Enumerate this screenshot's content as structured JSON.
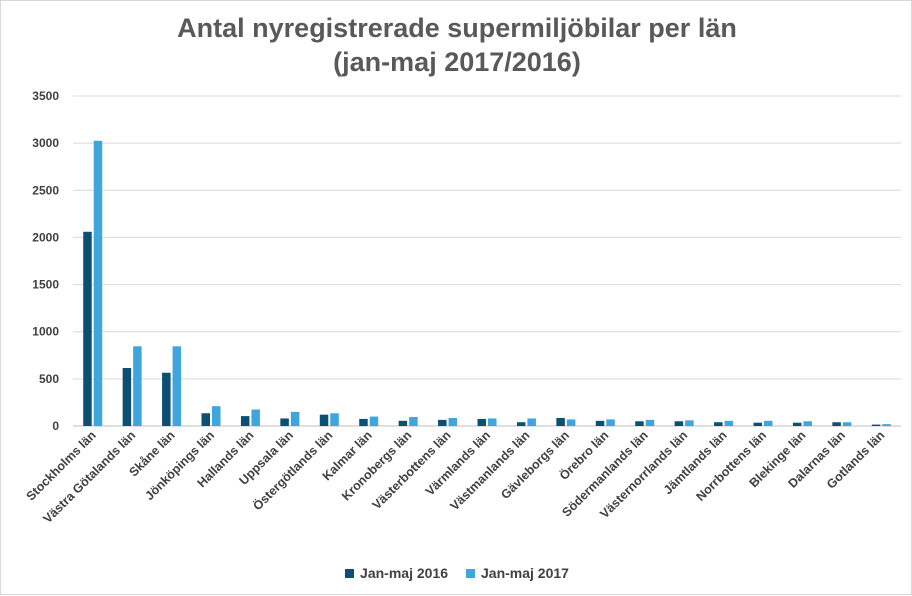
{
  "chart_data": {
    "type": "bar",
    "title_line1": "Antal nyregistrerade supermiljöbilar per län",
    "title_line2": "(jan-maj 2017/2016)",
    "xlabel": "",
    "ylabel": "",
    "ylim": [
      0,
      3500
    ],
    "yticks": [
      "0",
      "500",
      "1000",
      "1500",
      "2000",
      "2500",
      "3000",
      "3500"
    ],
    "grid": true,
    "legend_position": "bottom",
    "categories": [
      "Stockholms län",
      "Västra Götalands län",
      "Skåne län",
      "Jönköpings län",
      "Hallands län",
      "Uppsala län",
      "Östergötlands län",
      "Kalmar län",
      "Kronobergs län",
      "Västerbottens län",
      "Värmlands län",
      "Västmanlands län",
      "Gävleborgs län",
      "Örebro län",
      "Södermanlands län",
      "Västernorrlands län",
      "Jämtlands län",
      "Norrbottens län",
      "Blekinge län",
      "Dalarnas län",
      "Gotlands län"
    ],
    "series": [
      {
        "name": "Jan-maj 2016",
        "color": "#0b4f73",
        "values": [
          2060,
          615,
          565,
          135,
          105,
          80,
          120,
          75,
          55,
          65,
          75,
          40,
          85,
          55,
          50,
          50,
          40,
          35,
          35,
          40,
          15
        ]
      },
      {
        "name": "Jan-maj 2017",
        "color": "#3ea6dd",
        "values": [
          3025,
          845,
          845,
          210,
          175,
          150,
          135,
          100,
          95,
          85,
          80,
          80,
          70,
          70,
          65,
          60,
          55,
          55,
          50,
          40,
          20
        ]
      }
    ]
  }
}
